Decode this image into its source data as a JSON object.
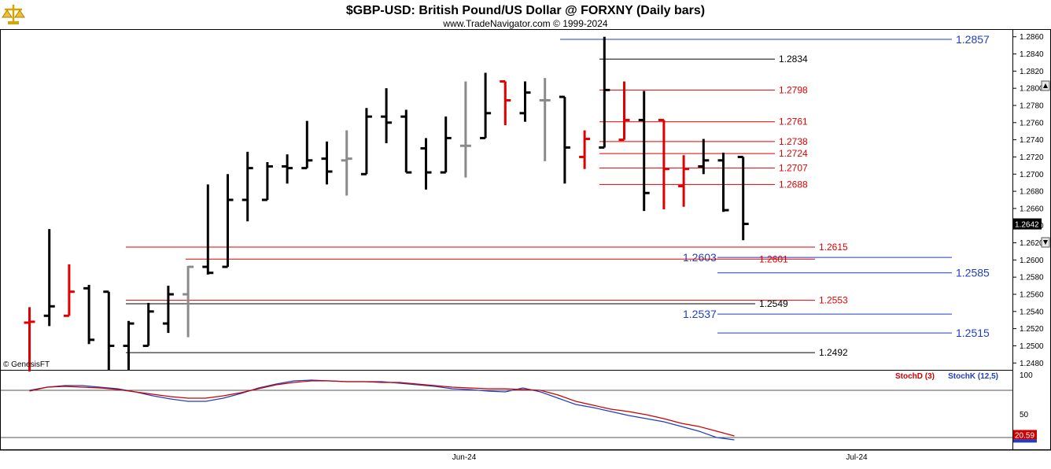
{
  "header": {
    "title": "$GBP-USD:  British Pound/US Dollar @ FORXNY  (Daily bars)",
    "subtitle": "www.TradeNavigator.com © 1999-2024"
  },
  "logo": {
    "icon": "scales-logo-icon",
    "color": "#d9a300"
  },
  "watermark": "© GenesisFT",
  "chart_data": {
    "type": "ohlc",
    "ylim": [
      1.2472,
      1.2868
    ],
    "yticks": [
      "1.2480",
      "1.2500",
      "1.2520",
      "1.2540",
      "1.2560",
      "1.2580",
      "1.2600",
      "1.2620",
      "1.2640",
      "1.2660",
      "1.2680",
      "1.2700",
      "1.2720",
      "1.2740",
      "1.2760",
      "1.2780",
      "1.2800",
      "1.2820",
      "1.2840",
      "1.2860"
    ],
    "last_price": "1.2642",
    "x_labels": [
      "Jun-24",
      "Jul-24"
    ],
    "bars": [
      {
        "o": 1.2527,
        "h": 1.2545,
        "l": 1.247,
        "c": 1.2528,
        "color": "red"
      },
      {
        "o": 1.2535,
        "h": 1.2636,
        "l": 1.2523,
        "c": 1.2546,
        "color": "black"
      },
      {
        "o": 1.2535,
        "h": 1.2595,
        "l": 1.2535,
        "c": 1.2563,
        "color": "red"
      },
      {
        "o": 1.2567,
        "h": 1.2571,
        "l": 1.2502,
        "c": 1.2507,
        "color": "black"
      },
      {
        "o": 1.2563,
        "h": 1.2563,
        "l": 1.2472,
        "c": 1.25,
        "color": "black"
      },
      {
        "o": 1.25,
        "h": 1.2529,
        "l": 1.2472,
        "c": 1.2526,
        "color": "black"
      },
      {
        "o": 1.25,
        "h": 1.255,
        "l": 1.25,
        "c": 1.254,
        "color": "black"
      },
      {
        "o": 1.2526,
        "h": 1.257,
        "l": 1.2515,
        "c": 1.256,
        "color": "black"
      },
      {
        "o": 1.256,
        "h": 1.2593,
        "l": 1.251,
        "c": 1.2592,
        "color": "gray"
      },
      {
        "o": 1.2592,
        "h": 1.2688,
        "l": 1.2583,
        "c": 1.2585,
        "color": "black"
      },
      {
        "o": 1.2592,
        "h": 1.27,
        "l": 1.2592,
        "c": 1.267,
        "color": "black"
      },
      {
        "o": 1.267,
        "h": 1.2726,
        "l": 1.2645,
        "c": 1.2707,
        "color": "black"
      },
      {
        "o": 1.267,
        "h": 1.2714,
        "l": 1.267,
        "c": 1.2709,
        "color": "black"
      },
      {
        "o": 1.2709,
        "h": 1.2723,
        "l": 1.2689,
        "c": 1.2707,
        "color": "black"
      },
      {
        "o": 1.2707,
        "h": 1.2762,
        "l": 1.2707,
        "c": 1.2716,
        "color": "black"
      },
      {
        "o": 1.2718,
        "h": 1.2738,
        "l": 1.2688,
        "c": 1.2703,
        "color": "black"
      },
      {
        "o": 1.2716,
        "h": 1.2751,
        "l": 1.2675,
        "c": 1.2718,
        "color": "gray"
      },
      {
        "o": 1.27,
        "h": 1.2777,
        "l": 1.27,
        "c": 1.2767,
        "color": "black"
      },
      {
        "o": 1.2767,
        "h": 1.28,
        "l": 1.2736,
        "c": 1.276,
        "color": "black"
      },
      {
        "o": 1.2767,
        "h": 1.2775,
        "l": 1.2702,
        "c": 1.2702,
        "color": "black"
      },
      {
        "o": 1.273,
        "h": 1.2742,
        "l": 1.2682,
        "c": 1.2702,
        "color": "black"
      },
      {
        "o": 1.2702,
        "h": 1.2767,
        "l": 1.2702,
        "c": 1.2742,
        "color": "black"
      },
      {
        "o": 1.2733,
        "h": 1.2808,
        "l": 1.2696,
        "c": 1.2733,
        "color": "gray"
      },
      {
        "o": 1.2742,
        "h": 1.2818,
        "l": 1.2742,
        "c": 1.2771,
        "color": "black"
      },
      {
        "o": 1.2808,
        "h": 1.2808,
        "l": 1.2757,
        "c": 1.2786,
        "color": "red"
      },
      {
        "o": 1.2771,
        "h": 1.2808,
        "l": 1.2761,
        "c": 1.2795,
        "color": "black"
      },
      {
        "o": 1.2786,
        "h": 1.2812,
        "l": 1.2715,
        "c": 1.2786,
        "color": "gray"
      },
      {
        "o": 1.279,
        "h": 1.279,
        "l": 1.2689,
        "c": 1.2731,
        "color": "black"
      },
      {
        "o": 1.272,
        "h": 1.2751,
        "l": 1.2706,
        "c": 1.2741,
        "color": "red"
      },
      {
        "o": 1.2731,
        "h": 1.286,
        "l": 1.2731,
        "c": 1.2798,
        "color": "black"
      },
      {
        "o": 1.274,
        "h": 1.2808,
        "l": 1.274,
        "c": 1.2763,
        "color": "red"
      },
      {
        "o": 1.2763,
        "h": 1.2797,
        "l": 1.2657,
        "c": 1.2678,
        "color": "black"
      },
      {
        "o": 1.2763,
        "h": 1.2763,
        "l": 1.2659,
        "c": 1.2706,
        "color": "red"
      },
      {
        "o": 1.2686,
        "h": 1.2722,
        "l": 1.2662,
        "c": 1.2706,
        "color": "red"
      },
      {
        "o": 1.2709,
        "h": 1.2741,
        "l": 1.27,
        "c": 1.2716,
        "color": "black"
      },
      {
        "o": 1.2716,
        "h": 1.2725,
        "l": 1.2656,
        "c": 1.2658,
        "color": "black"
      },
      {
        "o": 1.272,
        "h": 1.272,
        "l": 1.2623,
        "c": 1.2642,
        "color": "black"
      }
    ],
    "levels": [
      {
        "value": 1.2857,
        "label": "1.2857",
        "color": "blue"
      },
      {
        "value": 1.2834,
        "label": "1.2834",
        "color": "black"
      },
      {
        "value": 1.2798,
        "label": "1.2798",
        "color": "red"
      },
      {
        "value": 1.2761,
        "label": "1.2761",
        "color": "red"
      },
      {
        "value": 1.2738,
        "label": "1.2738",
        "color": "red"
      },
      {
        "value": 1.2724,
        "label": "1.2724",
        "color": "red"
      },
      {
        "value": 1.2707,
        "label": "1.2707",
        "color": "red"
      },
      {
        "value": 1.2688,
        "label": "1.2688",
        "color": "red"
      },
      {
        "value": 1.2615,
        "label": "1.2615",
        "color": "red"
      },
      {
        "value": 1.2603,
        "label": "1.2603",
        "color": "blue"
      },
      {
        "value": 1.2601,
        "label": "1.2601",
        "color": "red"
      },
      {
        "value": 1.2585,
        "label": "1.2585",
        "color": "blue"
      },
      {
        "value": 1.2553,
        "label": "1.2553",
        "color": "red"
      },
      {
        "value": 1.2549,
        "label": "1.2549",
        "color": "black"
      },
      {
        "value": 1.2537,
        "label": "1.2537",
        "color": "blue"
      },
      {
        "value": 1.2515,
        "label": "1.2515",
        "color": "blue"
      },
      {
        "value": 1.2492,
        "label": "1.2492",
        "color": "black"
      }
    ],
    "stochastic": {
      "legend_d": "StochD (3)",
      "legend_k": "StochK (12,5)",
      "ylim": [
        0,
        100
      ],
      "ticks": [
        "100",
        "50"
      ],
      "reference_levels": [
        80,
        20
      ],
      "last_value": "20.59",
      "stoch_d": [
        79,
        84,
        85,
        84,
        83,
        81,
        78,
        75,
        72,
        70,
        70,
        73,
        77,
        82,
        87,
        90,
        92,
        92,
        91,
        91,
        90,
        90,
        88,
        86,
        84,
        83,
        82,
        82,
        81,
        80,
        74,
        66,
        61,
        56,
        53,
        49,
        44,
        38,
        34,
        28,
        22
      ],
      "stoch_k": [
        80,
        84,
        86,
        86,
        84,
        82,
        78,
        73,
        69,
        66,
        66,
        70,
        76,
        83,
        88,
        92,
        93,
        92,
        91,
        91,
        91,
        89,
        87,
        85,
        82,
        81,
        79,
        78,
        83,
        78,
        70,
        62,
        58,
        53,
        48,
        44,
        40,
        34,
        28,
        20,
        17
      ]
    }
  }
}
